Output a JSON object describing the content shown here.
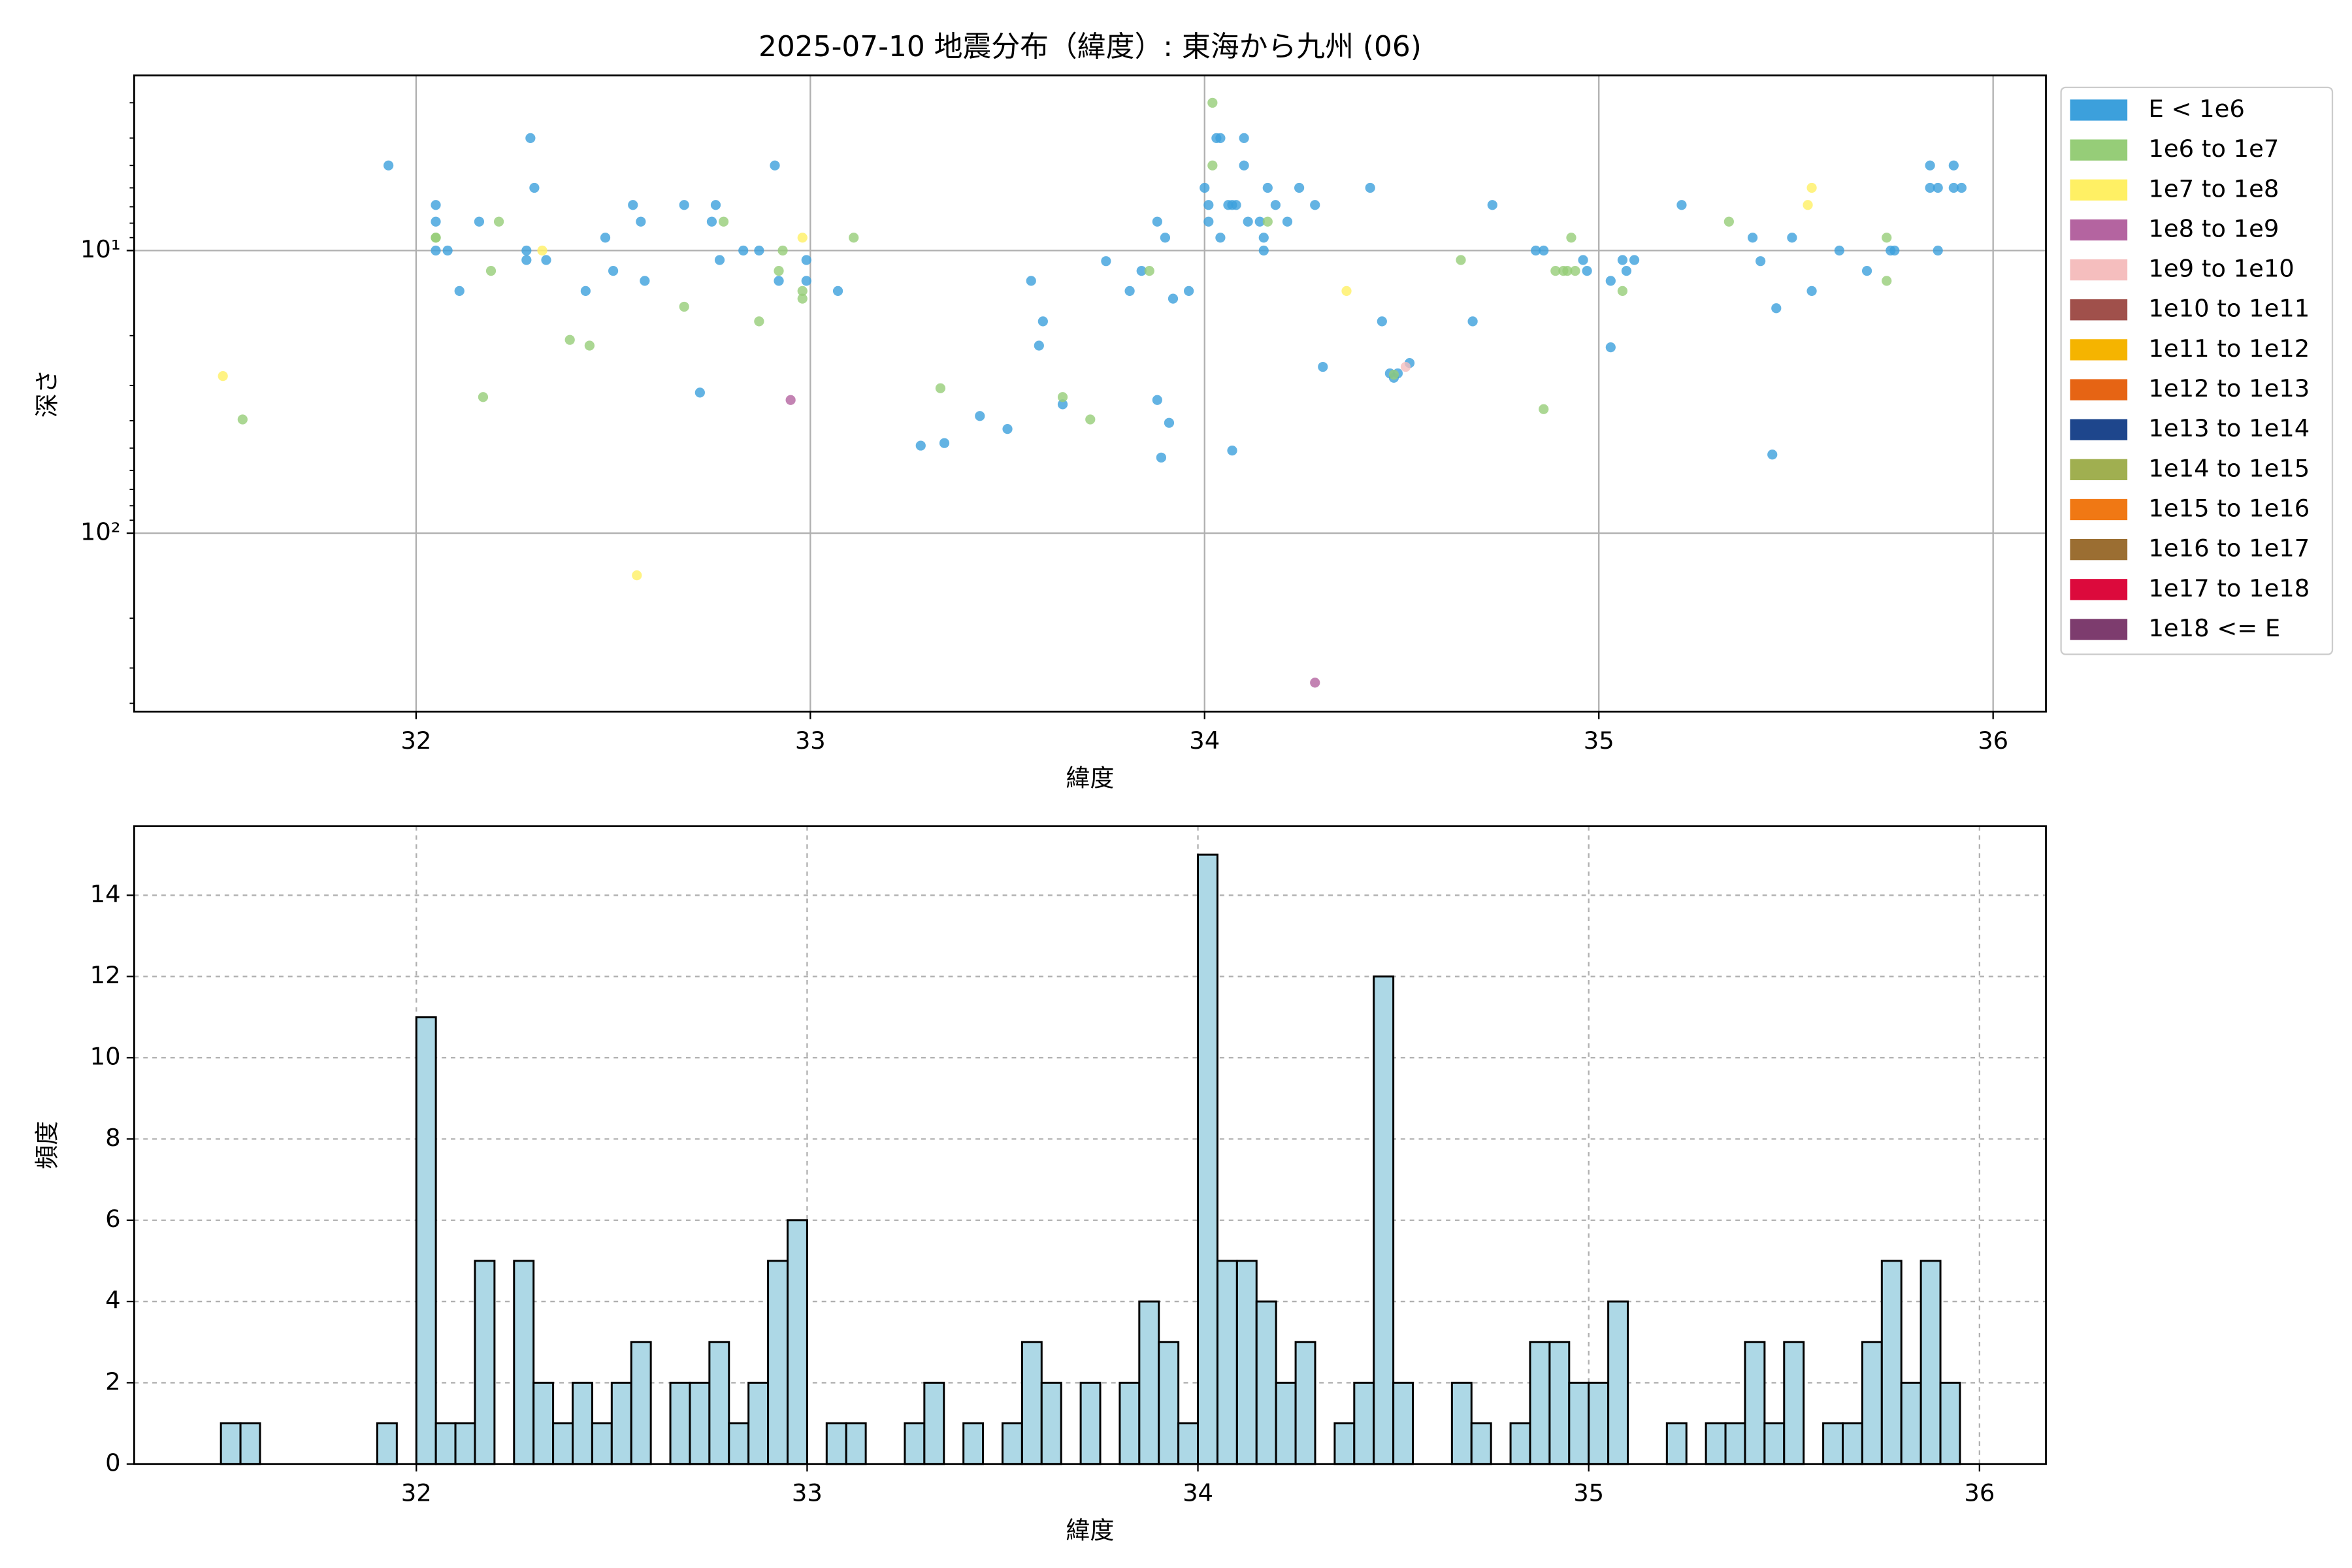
{
  "chart_data": [
    {
      "type": "scatter",
      "title": "2025-07-10 地震分布（緯度）: 東海から九州 (06)",
      "xlabel": "緯度",
      "ylabel": "深さ",
      "xlim": [
        31.285,
        36.134
      ],
      "xticks": [
        32,
        33,
        34,
        35,
        36
      ],
      "ylim": [
        2.4,
        428
      ],
      "y_inverted": true,
      "log_y": true,
      "yticks": [
        {
          "value": 10,
          "label": "10¹"
        },
        {
          "value": 100,
          "label": "10²"
        }
      ],
      "grid": true,
      "legend": "outside right",
      "series": [
        {
          "name": "E < 1e6",
          "color": "#3ca0dc",
          "x": [
            31.93,
            32.05,
            32.05,
            32.05,
            32.08,
            32.11,
            32.16,
            32.28,
            32.28,
            32.29,
            32.3,
            32.33,
            32.43,
            32.48,
            32.5,
            32.55,
            32.57,
            32.58,
            32.68,
            32.72,
            32.75,
            32.76,
            32.77,
            32.83,
            32.87,
            32.91,
            32.92,
            32.99,
            32.99,
            33.07,
            33.28,
            33.34,
            33.43,
            33.5,
            33.56,
            33.59,
            33.58,
            33.64,
            33.75,
            33.81,
            33.84,
            33.88,
            33.88,
            33.9,
            33.91,
            33.89,
            33.92,
            33.96,
            34.0,
            34.01,
            34.01,
            34.03,
            34.04,
            34.04,
            34.06,
            34.07,
            34.08,
            34.1,
            34.1,
            34.11,
            34.14,
            34.15,
            34.15,
            34.16,
            34.18,
            34.21,
            34.24,
            34.28,
            34.3,
            34.07,
            34.42,
            34.45,
            34.47,
            34.49,
            34.48,
            34.52,
            34.68,
            34.73,
            34.84,
            34.86,
            34.96,
            34.97,
            35.03,
            35.03,
            35.06,
            35.07,
            35.09,
            35.21,
            35.39,
            35.41,
            35.45,
            35.44,
            35.49,
            35.54,
            35.61,
            35.68,
            35.74,
            35.75,
            35.84,
            35.84,
            35.86,
            35.86,
            35.9,
            35.9,
            35.92
          ],
          "values": [
            5,
            6.9,
            7.9,
            10,
            10,
            13.9,
            7.9,
            10,
            10.8,
            4,
            6,
            10.8,
            13.9,
            9,
            11.8,
            6.9,
            7.9,
            12.8,
            6.9,
            31.8,
            7.9,
            6.9,
            10.8,
            10,
            10,
            5,
            12.8,
            10.8,
            12.8,
            13.9,
            49,
            48,
            38.5,
            42.8,
            12.8,
            17.8,
            21.7,
            35,
            10.9,
            13.9,
            11.8,
            7.9,
            33.8,
            9,
            40.7,
            54,
            14.8,
            13.9,
            6,
            6.9,
            7.9,
            4,
            4,
            9,
            6.9,
            6.9,
            6.9,
            4,
            5,
            7.9,
            7.9,
            9,
            10,
            6,
            6.9,
            7.9,
            6,
            6.9,
            25.8,
            51,
            6,
            17.8,
            27.2,
            27.2,
            28.2,
            25,
            17.8,
            6.9,
            10,
            10,
            10.8,
            11.8,
            22,
            12.8,
            10.8,
            11.8,
            10.8,
            6.9,
            9,
            10.9,
            16,
            52.7,
            9,
            13.9,
            10,
            11.8,
            10,
            10,
            5,
            6,
            6,
            10,
            5,
            6,
            6
          ]
        },
        {
          "name": "1e6 to 1e7",
          "color": "#96cd78",
          "x": [
            31.56,
            32.05,
            32.05,
            32.17,
            32.19,
            32.21,
            32.39,
            32.44,
            32.68,
            32.78,
            32.87,
            32.92,
            32.93,
            32.98,
            32.98,
            33.11,
            33.33,
            33.64,
            33.71,
            33.86,
            34.02,
            34.02,
            34.16,
            34.48,
            34.65,
            34.86,
            34.89,
            34.91,
            34.92,
            34.93,
            34.94,
            35.06,
            35.33,
            35.73,
            35.73
          ],
          "values": [
            39.6,
            9,
            9,
            33,
            11.8,
            7.9,
            20.7,
            21.7,
            15.8,
            7.9,
            17.8,
            11.8,
            10,
            14.8,
            13.9,
            9,
            30.7,
            33,
            39.6,
            11.8,
            3,
            5,
            7.9,
            27.5,
            10.8,
            36.4,
            11.8,
            11.8,
            11.8,
            9,
            11.8,
            13.9,
            7.9,
            9,
            12.8
          ]
        },
        {
          "name": "1e7 to 1e8",
          "color": "#fff064",
          "x": [
            31.51,
            32.32,
            32.98,
            32.56,
            34.36,
            35.53,
            35.54
          ],
          "values": [
            27.8,
            10,
            9,
            141,
            13.9,
            6.9,
            6
          ]
        },
        {
          "name": "1e8 to 1e9",
          "color": "#b464a0",
          "x": [
            32.95,
            34.28
          ],
          "values": [
            33.8,
            338
          ]
        },
        {
          "name": "1e9 to 1e10",
          "color": "#f5bebe",
          "x": [
            34.51
          ],
          "values": [
            25.8
          ]
        },
        {
          "name": "1e10 to 1e11",
          "color": "#a0504b",
          "x": [],
          "values": []
        },
        {
          "name": "1e11 to 1e12",
          "color": "#f5b400",
          "x": [],
          "values": []
        },
        {
          "name": "1e12 to 1e13",
          "color": "#e66414",
          "x": [],
          "values": []
        },
        {
          "name": "1e13 to 1e14",
          "color": "#1e468c",
          "x": [],
          "values": []
        },
        {
          "name": "1e14 to 1e15",
          "color": "#a0af50",
          "x": [],
          "values": []
        },
        {
          "name": "1e15 to 1e16",
          "color": "#f07814",
          "x": [],
          "values": []
        },
        {
          "name": "1e16 to 1e17",
          "color": "#9b6e32",
          "x": [],
          "values": []
        },
        {
          "name": "1e17 to 1e18",
          "color": "#dc0a3c",
          "x": [],
          "values": []
        },
        {
          "name": "1e18 <= E",
          "color": "#7d3c6e",
          "x": [],
          "values": []
        }
      ]
    },
    {
      "type": "histogram",
      "xlabel": "緯度",
      "ylabel": "頻度",
      "color": "#add8e6",
      "edgecolor": "#000000",
      "xlim": [
        31.278,
        36.17
      ],
      "xticks": [
        32,
        33,
        34,
        35,
        36
      ],
      "ylim": [
        0,
        15.7
      ],
      "yticks": [
        0,
        2,
        4,
        6,
        8,
        10,
        12,
        14
      ],
      "grid": true,
      "bins": [
        31.5,
        31.55,
        31.6,
        31.65,
        31.7,
        31.75,
        31.8,
        31.85,
        31.9,
        31.95,
        32,
        32.05,
        32.1,
        32.15,
        32.2,
        32.25,
        32.3,
        32.35,
        32.4,
        32.45,
        32.5,
        32.55,
        32.6,
        32.65,
        32.7,
        32.75,
        32.8,
        32.85,
        32.9,
        32.95,
        33,
        33.05,
        33.1,
        33.15,
        33.2,
        33.25,
        33.3,
        33.35,
        33.4,
        33.45,
        33.5,
        33.55,
        33.6,
        33.65,
        33.7,
        33.75,
        33.8,
        33.85,
        33.9,
        33.95,
        34,
        34.05,
        34.1,
        34.15,
        34.2,
        34.25,
        34.3,
        34.35,
        34.4,
        34.45,
        34.5,
        34.55,
        34.6,
        34.65,
        34.7,
        34.75,
        34.8,
        34.85,
        34.9,
        34.95,
        35,
        35.05,
        35.1,
        35.15,
        35.2,
        35.25,
        35.3,
        35.35,
        35.4,
        35.45,
        35.5,
        35.55,
        35.6,
        35.65,
        35.7,
        35.75,
        35.8,
        35.85,
        35.9,
        35.95
      ],
      "values": [
        1,
        1,
        0,
        0,
        0,
        0,
        0,
        0,
        1,
        0,
        11,
        1,
        1,
        5,
        0,
        5,
        2,
        1,
        2,
        1,
        2,
        3,
        0,
        2,
        2,
        3,
        1,
        2,
        5,
        6,
        0,
        1,
        1,
        0,
        0,
        1,
        2,
        0,
        1,
        0,
        1,
        3,
        2,
        0,
        2,
        0,
        2,
        4,
        3,
        1,
        15,
        5,
        5,
        4,
        2,
        3,
        0,
        1,
        2,
        12,
        2,
        0,
        0,
        2,
        1,
        0,
        1,
        3,
        3,
        2,
        2,
        4,
        0,
        0,
        1,
        0,
        1,
        1,
        3,
        1,
        3,
        0,
        1,
        1,
        3,
        5,
        2,
        5,
        2
      ]
    }
  ]
}
